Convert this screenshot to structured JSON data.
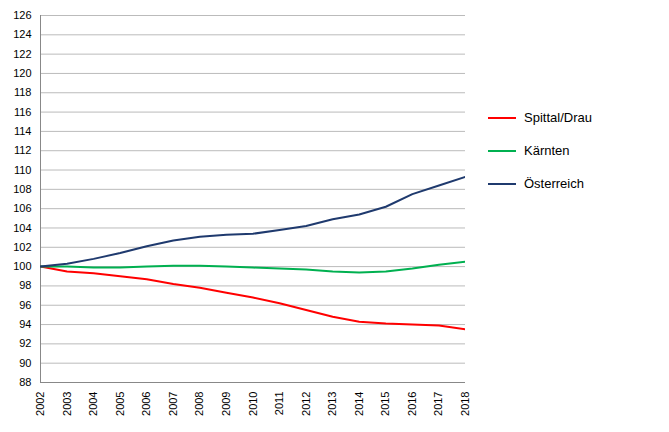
{
  "chart_data": {
    "type": "line",
    "x": [
      2002,
      2003,
      2004,
      2005,
      2006,
      2007,
      2008,
      2009,
      2010,
      2011,
      2012,
      2013,
      2014,
      2015,
      2016,
      2017,
      2018
    ],
    "series": [
      {
        "name": "Spittal/Drau",
        "color": "#ff0000",
        "values": [
          100.0,
          99.5,
          99.3,
          99.0,
          98.7,
          98.2,
          97.8,
          97.3,
          96.8,
          96.2,
          95.5,
          94.8,
          94.3,
          94.1,
          94.0,
          93.9,
          93.5
        ]
      },
      {
        "name": "Kärnten",
        "color": "#00b050",
        "values": [
          100.0,
          100.0,
          99.9,
          99.9,
          100.0,
          100.1,
          100.1,
          100.0,
          99.9,
          99.8,
          99.7,
          99.5,
          99.4,
          99.5,
          99.8,
          100.2,
          100.5
        ]
      },
      {
        "name": "Österreich",
        "color": "#1f3a6e",
        "values": [
          100.0,
          100.3,
          100.8,
          101.4,
          102.1,
          102.7,
          103.1,
          103.3,
          103.4,
          103.8,
          104.2,
          104.9,
          105.4,
          106.2,
          107.5,
          108.4,
          109.3
        ]
      }
    ],
    "xlim": [
      2002,
      2018
    ],
    "xticks": [
      2002,
      2003,
      2004,
      2005,
      2006,
      2007,
      2008,
      2009,
      2010,
      2011,
      2012,
      2013,
      2014,
      2015,
      2016,
      2017,
      2018
    ],
    "ylim": [
      88,
      126
    ],
    "yticks": [
      88,
      90,
      92,
      94,
      96,
      98,
      100,
      102,
      104,
      106,
      108,
      110,
      112,
      114,
      116,
      118,
      120,
      122,
      124,
      126
    ],
    "grid": "y",
    "legend": "right"
  }
}
